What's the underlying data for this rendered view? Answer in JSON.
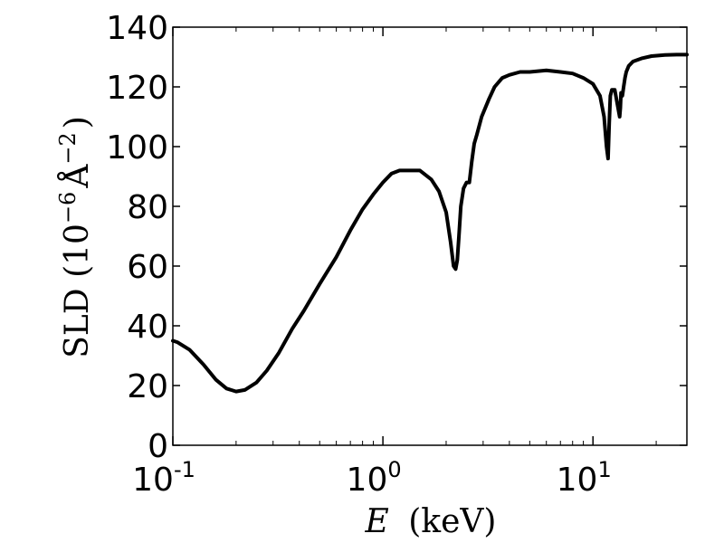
{
  "chart_data": {
    "type": "line",
    "xscale": "log",
    "xlim": [
      0.1,
      28
    ],
    "ylim": [
      0,
      140
    ],
    "grid": false,
    "legend": "none",
    "line_color": "#000000",
    "xlabel_var": "E",
    "xlabel_unit": "(keV)",
    "ylabel_text": "SLD (10",
    "ylabel_exp1": "−6",
    "ylabel_unit": "Å",
    "ylabel_exp2": "−2",
    "ylabel_close": ")",
    "y_ticks": [
      "0",
      "20",
      "40",
      "60",
      "80",
      "100",
      "120",
      "140"
    ],
    "x_ticks": [
      {
        "value": 0.1,
        "base": "10",
        "exp": "-1"
      },
      {
        "value": 1,
        "base": "10",
        "exp": "0"
      },
      {
        "value": 10,
        "base": "10",
        "exp": "1"
      }
    ],
    "series": [
      {
        "x": [
          0.1,
          0.105,
          0.12,
          0.14,
          0.16,
          0.18,
          0.2,
          0.22,
          0.25,
          0.28,
          0.32,
          0.37,
          0.42,
          0.5,
          0.6,
          0.7,
          0.8,
          0.9,
          1.0,
          1.1,
          1.2,
          1.35,
          1.5,
          1.7,
          1.85,
          2.0,
          2.1,
          2.17,
          2.22,
          2.26,
          2.3,
          2.35,
          2.42,
          2.5,
          2.58,
          2.65,
          2.72,
          2.8,
          2.95,
          3.2,
          3.4,
          3.7,
          4.0,
          4.5,
          5.0,
          6.0,
          7.0,
          8.0,
          9.0,
          10.0,
          10.8,
          11.3,
          11.6,
          11.8,
          11.95,
          12.1,
          12.3,
          12.7,
          13.0,
          13.4,
          13.5,
          13.6,
          13.8,
          14.0,
          14.2,
          14.4,
          14.8,
          15.5,
          17.0,
          19.0,
          22.0,
          25.0,
          28.0
        ],
        "y": [
          35,
          34.5,
          32,
          27,
          22,
          19,
          18,
          18.5,
          21,
          25,
          31,
          39,
          45,
          54,
          63,
          72,
          79,
          84,
          88,
          91,
          92,
          92,
          92,
          89,
          85,
          78,
          68,
          60,
          59,
          62,
          70,
          80,
          86,
          88,
          88,
          95,
          101,
          104,
          110,
          116,
          120,
          123,
          124,
          125,
          125,
          125.5,
          125,
          124.5,
          123,
          121,
          117,
          110,
          100,
          96,
          108,
          117,
          119,
          119,
          115,
          110,
          113,
          118,
          117,
          120,
          123,
          125,
          127,
          128.5,
          129.5,
          130.3,
          130.7,
          130.8,
          130.8
        ]
      }
    ]
  }
}
